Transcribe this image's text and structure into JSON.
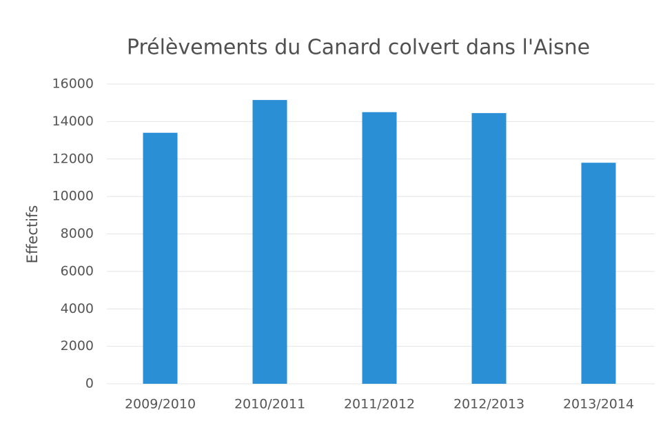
{
  "chart_data": {
    "type": "bar",
    "title": "Prélèvements du Canard colvert dans l'Aisne",
    "y_label": "Effectifs",
    "categories": [
      "2009/2010",
      "2010/2011",
      "2011/2012",
      "2012/2013",
      "2013/2014"
    ],
    "values": [
      13400,
      15150,
      14500,
      14450,
      11800
    ],
    "color": "#2b8fd6",
    "ylim": [
      0,
      16000
    ],
    "yticks": [
      0,
      2000,
      4000,
      6000,
      8000,
      10000,
      12000,
      14000,
      16000
    ],
    "grid": true
  }
}
